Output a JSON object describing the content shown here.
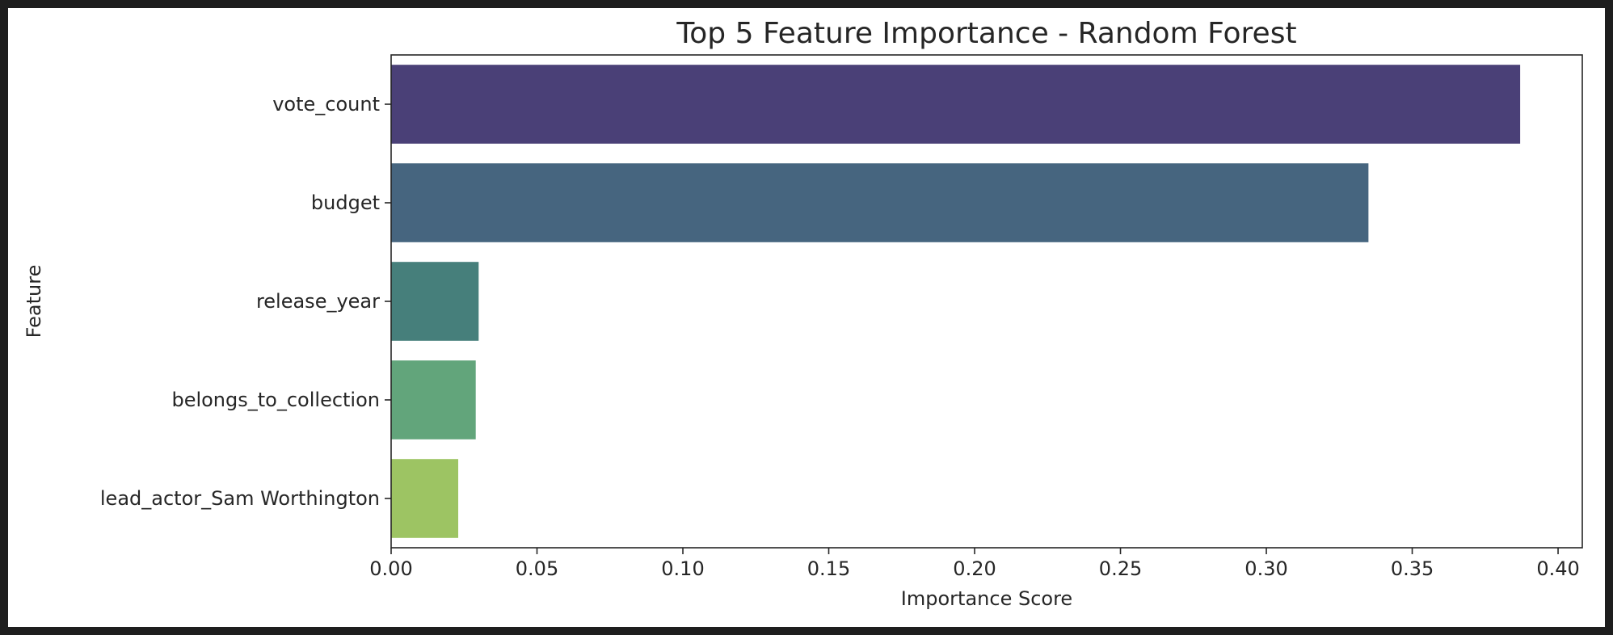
{
  "chart_data": {
    "type": "bar",
    "orientation": "horizontal",
    "title": "Top 5 Feature Importance - Random Forest",
    "xlabel": "Importance Score",
    "ylabel": "Feature",
    "categories": [
      "vote_count",
      "budget",
      "release_year",
      "belongs_to_collection",
      "lead_actor_Sam Worthington"
    ],
    "values": [
      0.387,
      0.335,
      0.03,
      0.029,
      0.023
    ],
    "colors": [
      "#4a4077",
      "#46657f",
      "#467f7b",
      "#62a57b",
      "#9dc463"
    ],
    "xlim": [
      0,
      0.4083
    ],
    "xticks": [
      "0.00",
      "0.05",
      "0.10",
      "0.15",
      "0.20",
      "0.25",
      "0.30",
      "0.35",
      "0.40"
    ],
    "grid": false,
    "legend": "none"
  }
}
